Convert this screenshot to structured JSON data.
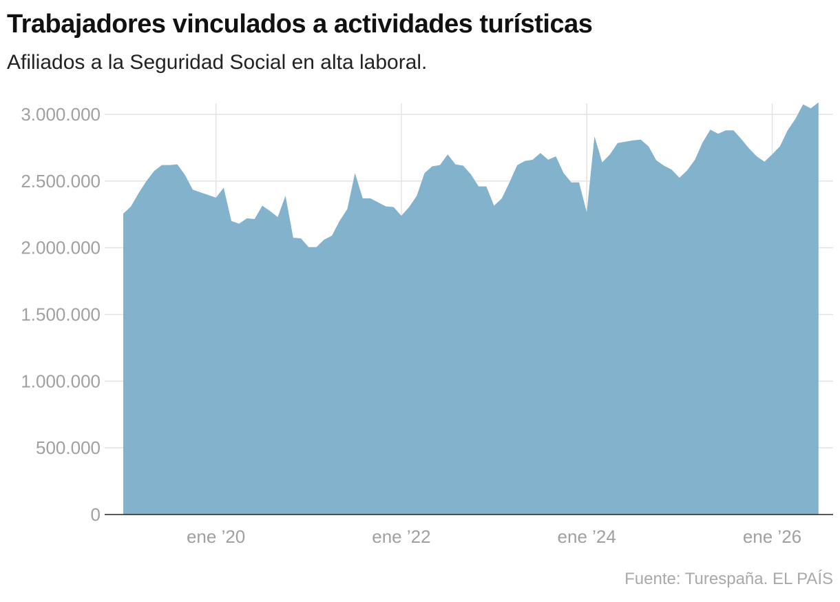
{
  "title": "Trabajadores vinculados a actividades turísticas",
  "subtitle": "Afiliados a la Seguridad Social en alta laboral.",
  "source": "Fuente: Turespaña. EL PAÍS",
  "chart_data": {
    "type": "area",
    "title": "Trabajadores vinculados a actividades turísticas",
    "subtitle": "Afiliados a la Seguridad Social en alta laboral.",
    "xlabel": "",
    "ylabel": "",
    "ylim": [
      0,
      3000000
    ],
    "xlim": [
      "2019-01",
      "2026-07"
    ],
    "yticks": [
      {
        "value": 0,
        "label": "0"
      },
      {
        "value": 500000,
        "label": "500.000"
      },
      {
        "value": 1000000,
        "label": "1.000.000"
      },
      {
        "value": 1500000,
        "label": "1.500.000"
      },
      {
        "value": 2000000,
        "label": "2.000.000"
      },
      {
        "value": 2500000,
        "label": "2.500.000"
      },
      {
        "value": 3000000,
        "label": "3.000.000"
      }
    ],
    "xticks": [
      {
        "value": "2020-01",
        "label": "ene ’20"
      },
      {
        "value": "2022-01",
        "label": "ene ’22"
      },
      {
        "value": "2024-01",
        "label": "ene ’24"
      },
      {
        "value": "2026-01",
        "label": "ene ’26"
      }
    ],
    "grid": true,
    "color": "#82b2cc",
    "x": [
      "2019-01",
      "2019-02",
      "2019-03",
      "2019-04",
      "2019-05",
      "2019-06",
      "2019-07",
      "2019-08",
      "2019-09",
      "2019-10",
      "2019-11",
      "2019-12",
      "2020-01",
      "2020-02",
      "2020-03",
      "2020-04",
      "2020-05",
      "2020-06",
      "2020-07",
      "2020-08",
      "2020-09",
      "2020-10",
      "2020-11",
      "2020-12",
      "2021-01",
      "2021-02",
      "2021-03",
      "2021-04",
      "2021-05",
      "2021-06",
      "2021-07",
      "2021-08",
      "2021-09",
      "2021-10",
      "2021-11",
      "2021-12",
      "2022-01",
      "2022-02",
      "2022-03",
      "2022-04",
      "2022-05",
      "2022-06",
      "2022-07",
      "2022-08",
      "2022-09",
      "2022-10",
      "2022-11",
      "2022-12",
      "2023-01",
      "2023-02",
      "2023-03",
      "2023-04",
      "2023-05",
      "2023-06",
      "2023-07",
      "2023-08",
      "2023-09",
      "2023-10",
      "2023-11",
      "2023-12",
      "2024-01",
      "2024-02",
      "2024-03",
      "2024-04",
      "2024-05",
      "2024-06",
      "2024-07",
      "2024-08",
      "2024-09",
      "2024-10",
      "2024-11",
      "2024-12",
      "2025-01",
      "2025-02",
      "2025-03",
      "2025-04",
      "2025-05",
      "2025-06",
      "2025-07",
      "2025-08",
      "2025-09",
      "2025-10",
      "2025-11",
      "2025-12",
      "2026-01",
      "2026-02",
      "2026-03",
      "2026-04",
      "2026-05",
      "2026-06",
      "2026-07"
    ],
    "values": [
      2255000,
      2310000,
      2410000,
      2500000,
      2575000,
      2620000,
      2620000,
      2625000,
      2545000,
      2435000,
      2415000,
      2395000,
      2375000,
      2450000,
      2200000,
      2180000,
      2220000,
      2215000,
      2315000,
      2275000,
      2230000,
      2390000,
      2075000,
      2070000,
      2005000,
      2005000,
      2060000,
      2090000,
      2200000,
      2290000,
      2560000,
      2370000,
      2370000,
      2340000,
      2310000,
      2305000,
      2240000,
      2305000,
      2390000,
      2560000,
      2610000,
      2620000,
      2700000,
      2625000,
      2615000,
      2550000,
      2460000,
      2460000,
      2315000,
      2370000,
      2490000,
      2620000,
      2650000,
      2660000,
      2710000,
      2660000,
      2685000,
      2560000,
      2490000,
      2490000,
      2265000,
      2835000,
      2640000,
      2700000,
      2785000,
      2795000,
      2805000,
      2810000,
      2760000,
      2655000,
      2615000,
      2585000,
      2525000,
      2580000,
      2660000,
      2790000,
      2885000,
      2855000,
      2880000,
      2880000,
      2815000,
      2745000,
      2685000,
      2645000,
      2700000,
      2760000,
      2880000,
      2965000,
      3075000,
      3045000,
      3090000
    ]
  }
}
